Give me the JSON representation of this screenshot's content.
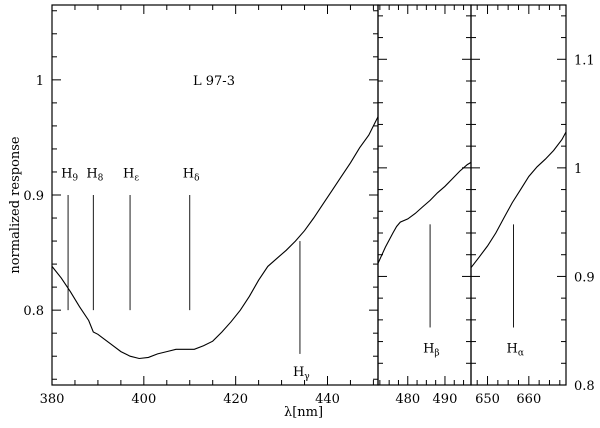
{
  "chart_data": {
    "type": "line",
    "star_label": "L 97-3",
    "ylabel": "normalized response",
    "xlabel": "λ[nm]",
    "left_y_axis": {
      "range": [
        0.735,
        1.065
      ],
      "ticks": [
        "0.8",
        "0.9",
        "1"
      ],
      "tick_values": [
        0.8,
        0.9,
        1.0
      ]
    },
    "right_y_axis": {
      "range": [
        0.8,
        1.15
      ],
      "ticks": [
        "0.8",
        "0.9",
        "1",
        "1.1"
      ],
      "tick_values": [
        0.8,
        0.9,
        1.0,
        1.1
      ]
    },
    "panels": [
      {
        "name": "blue",
        "xlim": [
          380,
          451
        ],
        "x_ticks": [
          "380",
          "400",
          "420",
          "440"
        ],
        "x_tick_values": [
          380,
          400,
          420,
          440
        ],
        "y_axis": "left",
        "points": [
          [
            380,
            0.838
          ],
          [
            382,
            0.828
          ],
          [
            384,
            0.816
          ],
          [
            386,
            0.803
          ],
          [
            388,
            0.791
          ],
          [
            389,
            0.781
          ],
          [
            390,
            0.779
          ],
          [
            391,
            0.776
          ],
          [
            393,
            0.77
          ],
          [
            395,
            0.764
          ],
          [
            397,
            0.76
          ],
          [
            399,
            0.758
          ],
          [
            401,
            0.759
          ],
          [
            403,
            0.762
          ],
          [
            405,
            0.764
          ],
          [
            407,
            0.766
          ],
          [
            409,
            0.766
          ],
          [
            411,
            0.766
          ],
          [
            413,
            0.769
          ],
          [
            415,
            0.773
          ],
          [
            417,
            0.781
          ],
          [
            419,
            0.79
          ],
          [
            421,
            0.8
          ],
          [
            423,
            0.812
          ],
          [
            425,
            0.826
          ],
          [
            427,
            0.838
          ],
          [
            429,
            0.845
          ],
          [
            431,
            0.852
          ],
          [
            433,
            0.86
          ],
          [
            435,
            0.869
          ],
          [
            437,
            0.88
          ],
          [
            439,
            0.892
          ],
          [
            441,
            0.904
          ],
          [
            443,
            0.916
          ],
          [
            445,
            0.928
          ],
          [
            447,
            0.941
          ],
          [
            449,
            0.952
          ],
          [
            451,
            0.968
          ]
        ],
        "lines": [
          {
            "label": "H",
            "sub": "9",
            "x": 383.5,
            "y_top": 0.9,
            "y_bottom": 0.8,
            "label_y": 0.915,
            "label_pos": "above"
          },
          {
            "label": "H",
            "sub": "8",
            "x": 389,
            "y_top": 0.9,
            "y_bottom": 0.8,
            "label_y": 0.915,
            "label_pos": "above"
          },
          {
            "label": "H",
            "sub": "ε",
            "x": 397,
            "y_top": 0.9,
            "y_bottom": 0.8,
            "label_y": 0.915,
            "label_pos": "above"
          },
          {
            "label": "H",
            "sub": "δ",
            "x": 410,
            "y_top": 0.9,
            "y_bottom": 0.8,
            "label_y": 0.915,
            "label_pos": "above"
          },
          {
            "label": "H",
            "sub": "γ",
            "x": 434,
            "y_top": 0.86,
            "y_bottom": 0.762,
            "label_y": 0.743,
            "label_pos": "below"
          }
        ]
      },
      {
        "name": "beta",
        "xlim": [
          472,
          497
        ],
        "x_ticks": [
          "480",
          "490"
        ],
        "x_tick_values": [
          480,
          490
        ],
        "y_axis": "right",
        "points": [
          [
            472,
            0.912
          ],
          [
            474,
            0.927
          ],
          [
            476,
            0.94
          ],
          [
            477,
            0.946
          ],
          [
            478,
            0.95
          ],
          [
            480,
            0.953
          ],
          [
            482,
            0.958
          ],
          [
            484,
            0.964
          ],
          [
            486,
            0.97
          ],
          [
            488,
            0.977
          ],
          [
            490,
            0.983
          ],
          [
            492,
            0.99
          ],
          [
            494,
            0.997
          ],
          [
            496,
            1.003
          ],
          [
            497,
            1.005
          ]
        ],
        "lines": [
          {
            "label": "H",
            "sub": "β",
            "x": 486,
            "y_top": 0.948,
            "y_bottom": 0.853,
            "label_y": 0.83,
            "label_pos": "below"
          }
        ]
      },
      {
        "name": "alpha",
        "xlim": [
          646,
          669
        ],
        "x_ticks": [
          "650",
          "660"
        ],
        "x_tick_values": [
          650,
          660
        ],
        "y_axis": "right",
        "points": [
          [
            646,
            0.908
          ],
          [
            648,
            0.918
          ],
          [
            650,
            0.928
          ],
          [
            652,
            0.94
          ],
          [
            654,
            0.954
          ],
          [
            656,
            0.968
          ],
          [
            658,
            0.98
          ],
          [
            660,
            0.992
          ],
          [
            662,
            1.001
          ],
          [
            664,
            1.008
          ],
          [
            666,
            1.016
          ],
          [
            668,
            1.026
          ],
          [
            669,
            1.033
          ]
        ],
        "lines": [
          {
            "label": "H",
            "sub": "α",
            "x": 656.3,
            "y_top": 0.948,
            "y_bottom": 0.853,
            "label_y": 0.83,
            "label_pos": "below"
          }
        ]
      }
    ]
  }
}
